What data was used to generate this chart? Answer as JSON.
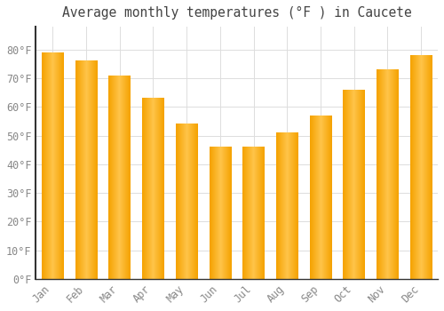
{
  "title": "Average monthly temperatures (°F ) in Caucete",
  "months": [
    "Jan",
    "Feb",
    "Mar",
    "Apr",
    "May",
    "Jun",
    "Jul",
    "Aug",
    "Sep",
    "Oct",
    "Nov",
    "Dec"
  ],
  "values": [
    79,
    76,
    71,
    63,
    54,
    46,
    46,
    51,
    57,
    66,
    73,
    78
  ],
  "bar_color_center": "#FFB733",
  "bar_color_edge": "#F5A200",
  "background_color": "#FFFFFF",
  "grid_color": "#DDDDDD",
  "tick_label_color": "#888888",
  "title_color": "#444444",
  "spine_color": "#333333",
  "ylim": [
    0,
    88
  ],
  "yticks": [
    0,
    10,
    20,
    30,
    40,
    50,
    60,
    70,
    80
  ],
  "title_fontsize": 10.5,
  "tick_fontsize": 8.5,
  "bar_width": 0.65
}
